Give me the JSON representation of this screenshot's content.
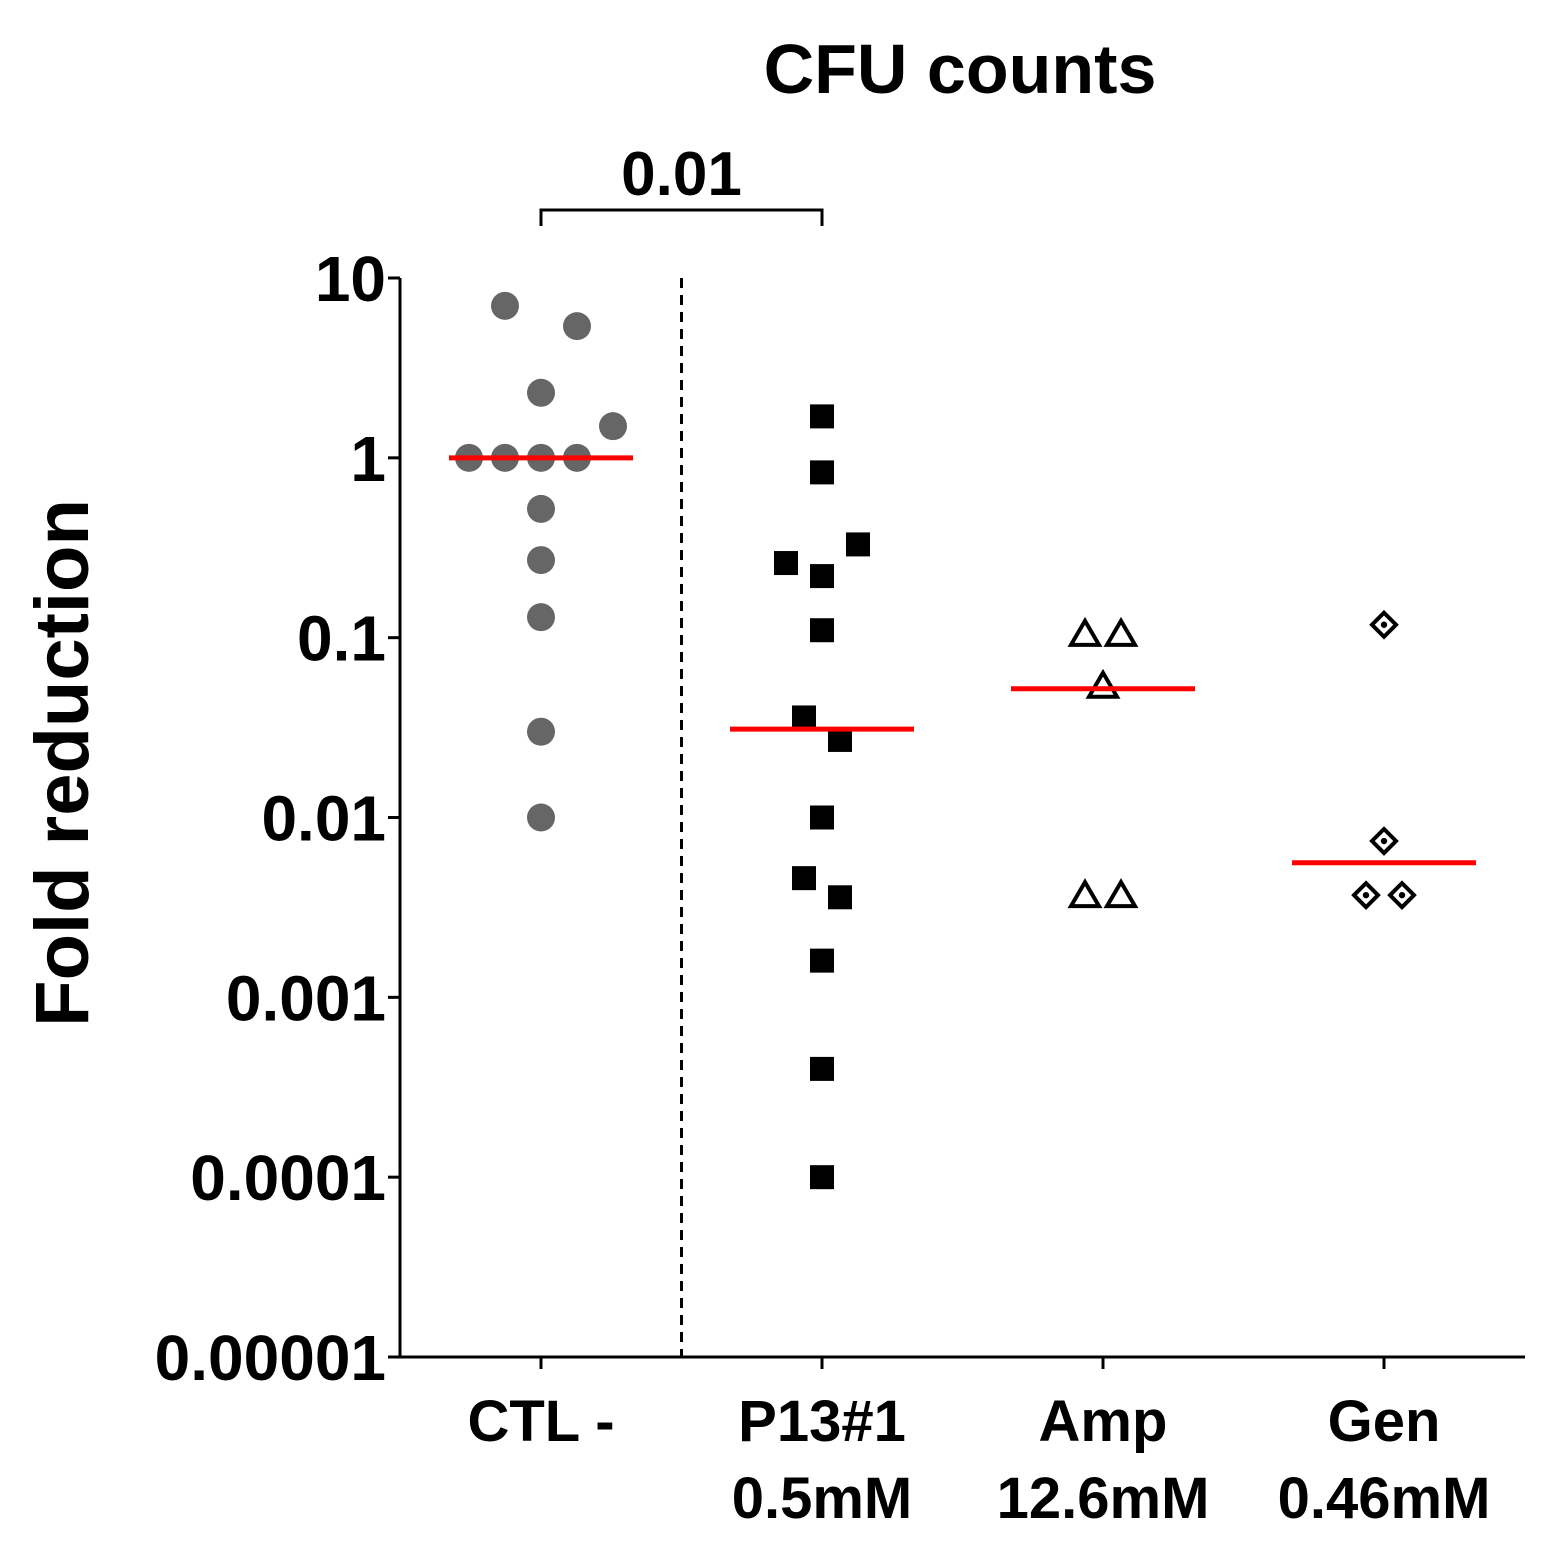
{
  "chart_data": {
    "type": "scatter",
    "title": "CFU counts",
    "xlabel": "",
    "ylabel": "Fold reduction",
    "yscale": "log",
    "ylim": [
      1e-05,
      10
    ],
    "ytick_values": [
      10,
      1,
      0.1,
      0.01,
      0.001,
      0.0001,
      1e-05
    ],
    "ytick_labels": [
      "10",
      "1",
      "0.1",
      "0.01",
      "0.001",
      "0.0001",
      "0.00001"
    ],
    "categories": [
      {
        "line1": "CTL -",
        "line2": ""
      },
      {
        "line1": "P13#1",
        "line2": "0.5mM"
      },
      {
        "line1": "Amp",
        "line2": "12.6mM"
      },
      {
        "line1": "Gen",
        "line2": "0.46mM"
      }
    ],
    "series": [
      {
        "name": "CTL -",
        "marker": "circle-filled",
        "color": "#666666",
        "median": 1.0,
        "points": [
          {
            "y": 7.0,
            "offset": -1
          },
          {
            "y": 5.4,
            "offset": 1
          },
          {
            "y": 2.3,
            "offset": 0
          },
          {
            "y": 1.0,
            "offset": -2
          },
          {
            "y": 1.0,
            "offset": -1
          },
          {
            "y": 1.0,
            "offset": 0
          },
          {
            "y": 1.0,
            "offset": 1
          },
          {
            "y": 1.5,
            "offset": 2
          },
          {
            "y": 0.52,
            "offset": 0
          },
          {
            "y": 0.27,
            "offset": 0
          },
          {
            "y": 0.13,
            "offset": 0
          },
          {
            "y": 0.03,
            "offset": 0
          },
          {
            "y": 0.01,
            "offset": 0
          }
        ]
      },
      {
        "name": "P13#1 0.5mM",
        "marker": "square-filled",
        "color": "#000000",
        "median": 0.031,
        "points": [
          {
            "y": 1.7,
            "offset": 0
          },
          {
            "y": 0.83,
            "offset": 0
          },
          {
            "y": 0.33,
            "offset": 1
          },
          {
            "y": 0.26,
            "offset": -1
          },
          {
            "y": 0.22,
            "offset": 0
          },
          {
            "y": 0.11,
            "offset": 0
          },
          {
            "y": 0.036,
            "offset": -0.5
          },
          {
            "y": 0.027,
            "offset": 0.5
          },
          {
            "y": 0.01,
            "offset": 0
          },
          {
            "y": 0.0046,
            "offset": -0.5
          },
          {
            "y": 0.0036,
            "offset": 0.5
          },
          {
            "y": 0.0016,
            "offset": 0
          },
          {
            "y": 0.0004,
            "offset": 0
          },
          {
            "y": 0.0001,
            "offset": 0
          }
        ]
      },
      {
        "name": "Amp 12.6mM",
        "marker": "triangle-open",
        "color": "#000000",
        "median": 0.052,
        "points": [
          {
            "y": 0.105,
            "offset": -0.5
          },
          {
            "y": 0.105,
            "offset": 0.5
          },
          {
            "y": 0.054,
            "offset": 0
          },
          {
            "y": 0.0037,
            "offset": -0.5
          },
          {
            "y": 0.0037,
            "offset": 0.5
          }
        ]
      },
      {
        "name": "Gen 0.46mM",
        "marker": "diamond-open-dot",
        "color": "#000000",
        "median": 0.0056,
        "points": [
          {
            "y": 0.118,
            "offset": 0
          },
          {
            "y": 0.0074,
            "offset": 0
          },
          {
            "y": 0.0037,
            "offset": -0.5
          },
          {
            "y": 0.0037,
            "offset": 0.5
          }
        ]
      }
    ],
    "median_line_color": "#ff0000",
    "annotations": [
      {
        "text": "0.01",
        "type": "significance-bracket",
        "from_category": 0,
        "to_category": 1
      }
    ],
    "divider": {
      "type": "dashed-vertical",
      "between_categories": [
        0,
        1
      ]
    }
  }
}
